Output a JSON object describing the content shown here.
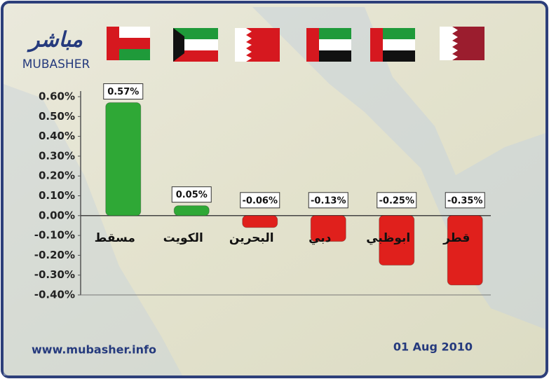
{
  "chart_data": {
    "type": "bar",
    "logo": {
      "arabic": "مباشر",
      "latin": "MUBASHER"
    },
    "categories": [
      "مسقط",
      "الكويت",
      "البحرين",
      "دبي",
      "ابوظبي",
      "قطر"
    ],
    "values": [
      0.57,
      0.05,
      -0.06,
      -0.13,
      -0.25,
      -0.35
    ],
    "value_labels": [
      "0.57%",
      "0.05%",
      "-0.06%",
      "-0.13%",
      "-0.25%",
      "-0.35%"
    ],
    "colors": [
      "#2fa836",
      "#2fa836",
      "#e0201c",
      "#e0201c",
      "#e0201c",
      "#e0201c"
    ],
    "ylim": [
      -0.4,
      0.6
    ],
    "yticks": [
      {
        "value": 0.6,
        "label": "0.60%"
      },
      {
        "value": 0.5,
        "label": "0.50%"
      },
      {
        "value": 0.4,
        "label": "0.40%"
      },
      {
        "value": 0.3,
        "label": "0.30%"
      },
      {
        "value": 0.2,
        "label": "0.20%"
      },
      {
        "value": 0.1,
        "label": "0.10%"
      },
      {
        "value": 0,
        "label": "0.00%"
      },
      {
        "value": -0.1,
        "label": "-0.10%"
      },
      {
        "value": -0.2,
        "label": "-0.20%"
      },
      {
        "value": -0.3,
        "label": "-0.30%"
      },
      {
        "value": -0.4,
        "label": "-0.40%"
      }
    ],
    "source": "www.mubasher.info",
    "date": "01 Aug 2010"
  }
}
